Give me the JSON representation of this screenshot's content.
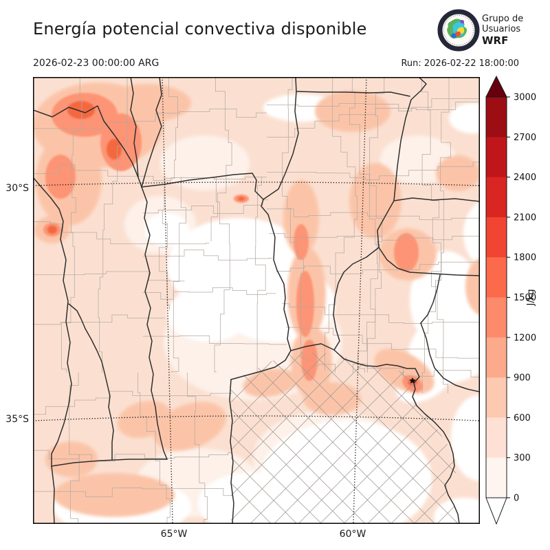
{
  "header": {
    "title": "Energía potencial convectiva disponible",
    "valid_time": "2026-02-23 00:00:00 ARG",
    "run_label": "Run: 2026-02-22 18:00:00"
  },
  "logo": {
    "line1": "Grupo de",
    "line2": "Usuarios",
    "line3": "WRF"
  },
  "map": {
    "y_axis_labels": [
      "30°S",
      "35°S"
    ],
    "x_axis_labels": [
      "65°W",
      "60°W"
    ]
  },
  "colorbar": {
    "unit": "J/kg",
    "tick_labels": [
      "0",
      "300",
      "600",
      "900",
      "1200",
      "1500",
      "1800",
      "2100",
      "2400",
      "2700",
      "3000"
    ],
    "bin_colors": [
      "#fff5f0",
      "#fee1d4",
      "#fdc9b0",
      "#fca98c",
      "#fc8a6b",
      "#fb6b4b",
      "#f14432",
      "#d92623",
      "#c0161b",
      "#9c0d14"
    ],
    "over_color": "#67000d",
    "under_color": "#ffffff",
    "outline_color": "#1a1a1a"
  },
  "chart_data": {
    "type": "heatmap",
    "title": "Energía potencial convectiva disponible",
    "units": "J/kg",
    "levels": [
      0,
      300,
      600,
      900,
      1200,
      1500,
      1800,
      2100,
      2400,
      2700,
      3000
    ],
    "colormap_colors": [
      "#fff5f0",
      "#fee1d4",
      "#fdc9b0",
      "#fca98c",
      "#fc8a6b",
      "#fb6b4b",
      "#f14432",
      "#d92623",
      "#c0161b",
      "#9c0d14"
    ],
    "lat_gridlines": [
      "30°S",
      "35°S"
    ],
    "lon_gridlines": [
      "65°W",
      "60°W"
    ]
  }
}
